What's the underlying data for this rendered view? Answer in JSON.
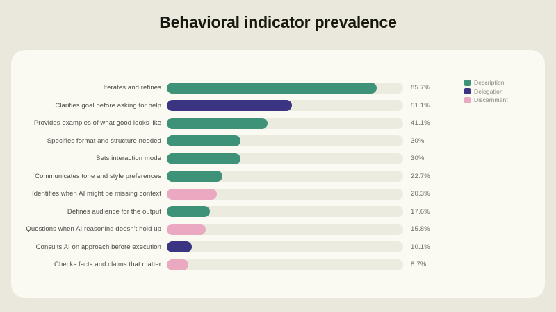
{
  "page": {
    "background_color": "#eae8dc",
    "card_background_color": "#faf9f2"
  },
  "chart_data": {
    "type": "bar",
    "orientation": "horizontal",
    "title": "Behavioral indicator prevalence",
    "categories": [
      "Iterates and refines",
      "Clarifies goal before asking for help",
      "Provides examples of what good looks like",
      "Specifies format and structure needed",
      "Sets interaction mode",
      "Communicates tone and style preferences",
      "Identifies when AI might be missing context",
      "Defines audience for the output",
      "Questions when AI reasoning doesn't hold up",
      "Consults AI on approach before execution",
      "Checks facts and claims that matter"
    ],
    "values": [
      85.7,
      51.1,
      41.1,
      30,
      30,
      22.7,
      20.3,
      17.6,
      15.8,
      10.1,
      8.7
    ],
    "value_labels": [
      "85.7%",
      "51.1%",
      "41.1%",
      "30%",
      "30%",
      "22.7%",
      "20.3%",
      "17.6%",
      "15.8%",
      "10.1%",
      "8.7%"
    ],
    "point_series": [
      "Description",
      "Delegation",
      "Description",
      "Description",
      "Description",
      "Description",
      "Discernment",
      "Description",
      "Discernment",
      "Delegation",
      "Discernment"
    ],
    "series_legend": [
      {
        "name": "Description",
        "color": "#3e9278"
      },
      {
        "name": "Delegation",
        "color": "#3a3483"
      },
      {
        "name": "Discernment",
        "color": "#eba9c1"
      }
    ],
    "track_color": "#ecebdf",
    "xlim": [
      0,
      96.5
    ],
    "legend_position": "top-right",
    "grid": false
  }
}
